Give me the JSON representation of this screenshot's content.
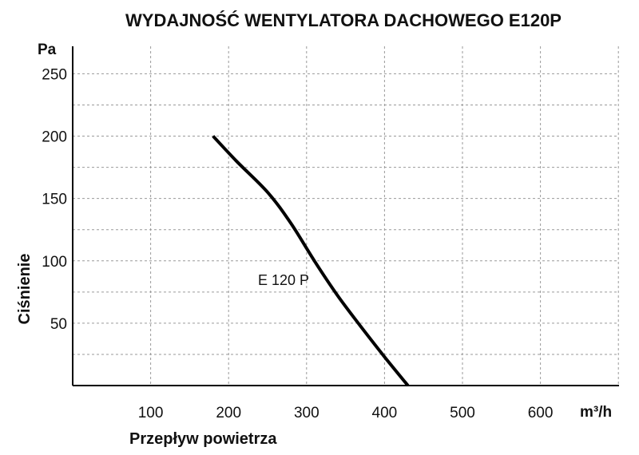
{
  "chart_data": {
    "type": "line",
    "title": "WYDAJNOŚĆ WENTYLATORA  DACHOWEGO E120P",
    "xlabel": "Przepływ powietrza",
    "ylabel": "Ciśnienie",
    "x_unit": "m³/h",
    "y_unit": "Pa",
    "xlim": [
      0,
      700
    ],
    "ylim": [
      0,
      265
    ],
    "x_ticks": [
      100,
      200,
      300,
      400,
      500,
      600
    ],
    "x_tick_labels": [
      "100",
      "200",
      "300",
      "400",
      "500",
      "600"
    ],
    "y_ticks": [
      50,
      100,
      150,
      200,
      250
    ],
    "y_tick_labels": [
      "50",
      "100",
      "150",
      "200",
      "250"
    ],
    "x_grid": [
      100,
      200,
      300,
      400,
      500,
      600,
      700
    ],
    "y_grid": [
      25,
      50,
      75,
      100,
      125,
      150,
      175,
      200,
      225,
      250
    ],
    "grid": true,
    "series": [
      {
        "name": "E 120 P",
        "color": "#000000",
        "x": [
          180,
          210,
          250,
          280,
          310,
          340,
          370,
          400,
          430
        ],
        "y": [
          200,
          180,
          155,
          130,
          100,
          72,
          47,
          23,
          0
        ]
      }
    ]
  }
}
